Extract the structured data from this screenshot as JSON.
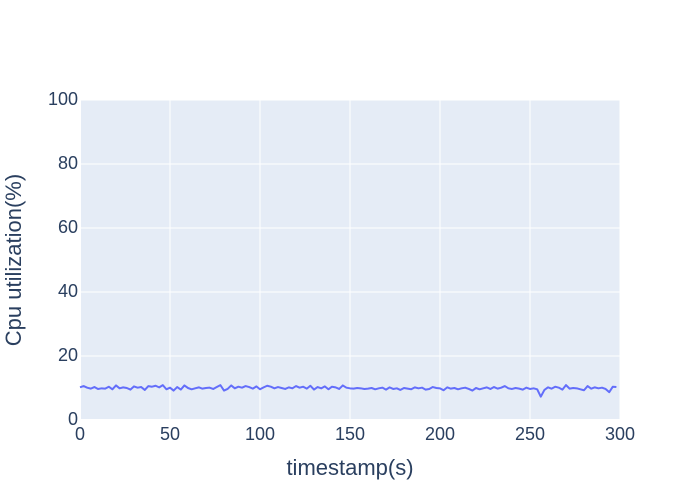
{
  "chart_data": {
    "type": "line",
    "x_label": "timestamp(s)",
    "y_label": "Cpu utilization(%)",
    "x": [
      0,
      2,
      4,
      6,
      8,
      10,
      12,
      14,
      16,
      18,
      20,
      22,
      24,
      26,
      28,
      30,
      32,
      34,
      36,
      38,
      40,
      42,
      44,
      46,
      48,
      50,
      52,
      54,
      56,
      58,
      60,
      62,
      64,
      66,
      68,
      70,
      72,
      74,
      76,
      78,
      80,
      82,
      84,
      86,
      88,
      90,
      92,
      94,
      96,
      98,
      100,
      102,
      104,
      106,
      108,
      110,
      112,
      114,
      116,
      118,
      120,
      122,
      124,
      126,
      128,
      130,
      132,
      134,
      136,
      138,
      140,
      142,
      144,
      146,
      148,
      150,
      152,
      154,
      156,
      158,
      160,
      162,
      164,
      166,
      168,
      170,
      172,
      174,
      176,
      178,
      180,
      182,
      184,
      186,
      188,
      190,
      192,
      194,
      196,
      198,
      200,
      202,
      204,
      206,
      208,
      210,
      212,
      214,
      216,
      218,
      220,
      222,
      224,
      226,
      228,
      230,
      232,
      234,
      236,
      238,
      240,
      242,
      244,
      246,
      248,
      250,
      252,
      254,
      256,
      258,
      260,
      262,
      264,
      266,
      268,
      270,
      272,
      274,
      276,
      278,
      280,
      282,
      284,
      286,
      288,
      290,
      292,
      294,
      296,
      298
    ],
    "values": [
      10.2,
      10.6,
      10.1,
      9.8,
      10.3,
      9.7,
      9.9,
      9.8,
      10.4,
      9.6,
      10.8,
      9.9,
      10.2,
      10.0,
      9.5,
      10.5,
      10.1,
      10.3,
      9.4,
      10.6,
      10.4,
      10.7,
      10.2,
      10.9,
      9.6,
      10.1,
      9.2,
      10.3,
      9.5,
      10.8,
      10.0,
      9.6,
      9.9,
      10.2,
      9.8,
      10.0,
      10.1,
      9.7,
      10.3,
      10.9,
      9.2,
      9.7,
      10.8,
      9.9,
      10.4,
      10.1,
      10.6,
      10.3,
      9.8,
      10.5,
      9.6,
      10.2,
      10.7,
      10.4,
      9.9,
      10.3,
      10.0,
      9.7,
      10.2,
      9.9,
      10.6,
      10.1,
      10.4,
      9.8,
      10.7,
      9.5,
      10.3,
      9.9,
      10.5,
      9.6,
      10.4,
      10.2,
      9.7,
      10.8,
      10.1,
      9.9,
      9.8,
      10.0,
      9.9,
      9.7,
      9.8,
      10.0,
      9.6,
      9.9,
      10.1,
      9.5,
      10.2,
      9.7,
      9.9,
      9.4,
      10.0,
      9.8,
      9.6,
      10.2,
      9.9,
      10.1,
      9.5,
      9.7,
      10.3,
      10.0,
      9.9,
      9.3,
      10.2,
      9.8,
      10.0,
      9.6,
      9.9,
      10.1,
      9.7,
      9.2,
      10.0,
      9.6,
      9.9,
      10.2,
      9.7,
      10.3,
      9.8,
      10.1,
      10.6,
      9.9,
      9.7,
      10.0,
      9.8,
      9.5,
      10.1,
      9.7,
      9.9,
      9.6,
      7.3,
      9.4,
      10.2,
      9.8,
      10.4,
      10.1,
      9.5,
      10.9,
      9.8,
      10.0,
      9.9,
      9.6,
      9.3,
      10.6,
      9.8,
      10.2,
      9.9,
      10.1,
      9.7,
      8.7,
      10.4,
      10.3
    ],
    "color": "#636efa",
    "xlim": [
      0,
      300
    ],
    "xticks": [
      0,
      50,
      100,
      150,
      200,
      250,
      300
    ],
    "ylim": [
      0,
      100
    ],
    "yticks": [
      0,
      20,
      40,
      60,
      80,
      100
    ],
    "grid": true
  }
}
